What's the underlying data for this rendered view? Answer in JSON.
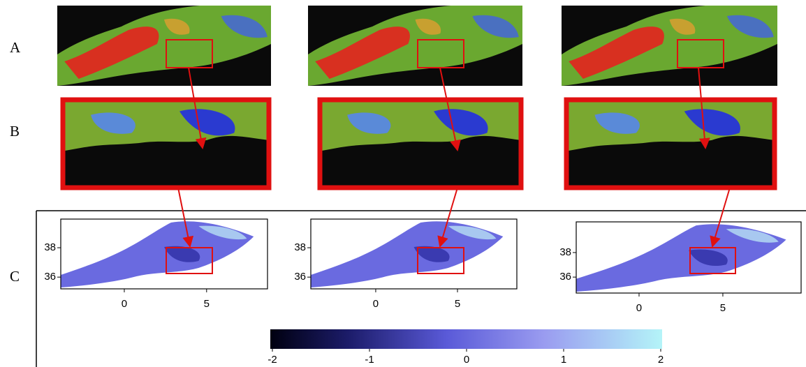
{
  "row_labels": [
    "A",
    "B",
    "C"
  ],
  "maps": [
    {
      "xlim": [
        -3.86,
        8.7
      ],
      "ylim": [
        35.2,
        39.95
      ],
      "xticks": [
        0,
        5
      ],
      "yticks": [
        36,
        38
      ]
    },
    {
      "xlim": [
        -3.97,
        8.63
      ],
      "ylim": [
        35.2,
        39.95
      ],
      "xticks": [
        0,
        5
      ],
      "yticks": [
        36,
        38
      ]
    },
    {
      "xlim": [
        -3.75,
        9.67
      ],
      "ylim": [
        34.7,
        40.5
      ],
      "xticks": [
        0,
        5
      ],
      "yticks": [
        36,
        38
      ]
    }
  ],
  "colorbar": {
    "lim": [
      -2,
      2
    ],
    "ticks": [
      -2,
      -1,
      0,
      1,
      2
    ]
  }
}
